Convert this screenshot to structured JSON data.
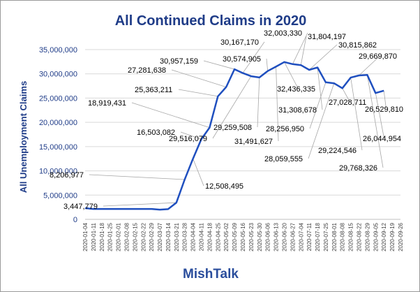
{
  "chart_data": {
    "type": "line",
    "title": "All Continued Claims in 2020",
    "ylabel": "All Unemployment  Claims",
    "xlabel": "",
    "ylim": [
      0,
      35000000
    ],
    "yticks": [
      0,
      5000000,
      10000000,
      15000000,
      20000000,
      25000000,
      30000000,
      35000000
    ],
    "ytick_labels": [
      "0",
      "5,000,000",
      "10,000,000",
      "15,000,000",
      "20,000,000",
      "25,000,000",
      "30,000,000",
      "35,000,000"
    ],
    "grid": true,
    "line_color": "#1f4fbf",
    "categories": [
      "2020-01-04",
      "2020-01-11",
      "2020-01-18",
      "2020-01-25",
      "2020-02-01",
      "2020-02-08",
      "2020-02-15",
      "2020-02-22",
      "2020-02-29",
      "2020-03-07",
      "2020-03-14",
      "2020-03-21",
      "2020-03-28",
      "2020-04-04",
      "2020-04-11",
      "2020-04-18",
      "2020-04-25",
      "2020-05-02",
      "2020-05-09",
      "2020-05-16",
      "2020-05-23",
      "2020-05-30",
      "2020-06-06",
      "2020-06-13",
      "2020-06-20",
      "2020-06-27",
      "2020-07-04",
      "2020-07-11",
      "2020-07-18",
      "2020-07-25",
      "2020-08-01",
      "2020-08-08",
      "2020-08-15",
      "2020-08-22",
      "2020-08-29",
      "2020-09-05",
      "2020-09-12",
      "2020-09-19",
      "2020-09-26"
    ],
    "values": [
      2300000,
      2150000,
      2150000,
      2150000,
      2150000,
      2150000,
      2150000,
      2150000,
      2150000,
      2000000,
      2100000,
      3447779,
      8206977,
      12508495,
      16503082,
      18919431,
      25363211,
      27281638,
      30957159,
      30167170,
      29516079,
      29259508,
      30574905,
      31491627,
      32436335,
      32003330,
      31804197,
      30815862,
      31308678,
      28256950,
      28059555,
      27028711,
      29224546,
      29669870,
      29768326,
      26044954,
      26529810,
      null,
      null
    ],
    "labels": [
      {
        "index": 11,
        "text": "3,447,779"
      },
      {
        "index": 12,
        "text": "8,206,977"
      },
      {
        "index": 13,
        "text": "12,508,495"
      },
      {
        "index": 14,
        "text": "16,503,082"
      },
      {
        "index": 15,
        "text": "18,919,431"
      },
      {
        "index": 16,
        "text": "25,363,211"
      },
      {
        "index": 17,
        "text": "27,281,638"
      },
      {
        "index": 18,
        "text": "30,957,159"
      },
      {
        "index": 19,
        "text": "30,167,170"
      },
      {
        "index": 20,
        "text": "29,516,079"
      },
      {
        "index": 21,
        "text": "29,259,508"
      },
      {
        "index": 22,
        "text": "30,574,905"
      },
      {
        "index": 23,
        "text": "31,491,627"
      },
      {
        "index": 24,
        "text": "32,436,335"
      },
      {
        "index": 25,
        "text": "32,003,330"
      },
      {
        "index": 26,
        "text": "31,804,197"
      },
      {
        "index": 27,
        "text": "30,815,862"
      },
      {
        "index": 28,
        "text": "31,308,678"
      },
      {
        "index": 29,
        "text": "28,256,950"
      },
      {
        "index": 30,
        "text": "28,059,555"
      },
      {
        "index": 31,
        "text": "27,028,711"
      },
      {
        "index": 32,
        "text": "29,224,546"
      },
      {
        "index": 33,
        "text": "29,669,870"
      },
      {
        "index": 34,
        "text": "29,768,326"
      },
      {
        "index": 35,
        "text": "26,044,954"
      },
      {
        "index": 36,
        "text": "26,529,810"
      }
    ]
  },
  "footer": "MishTalk"
}
